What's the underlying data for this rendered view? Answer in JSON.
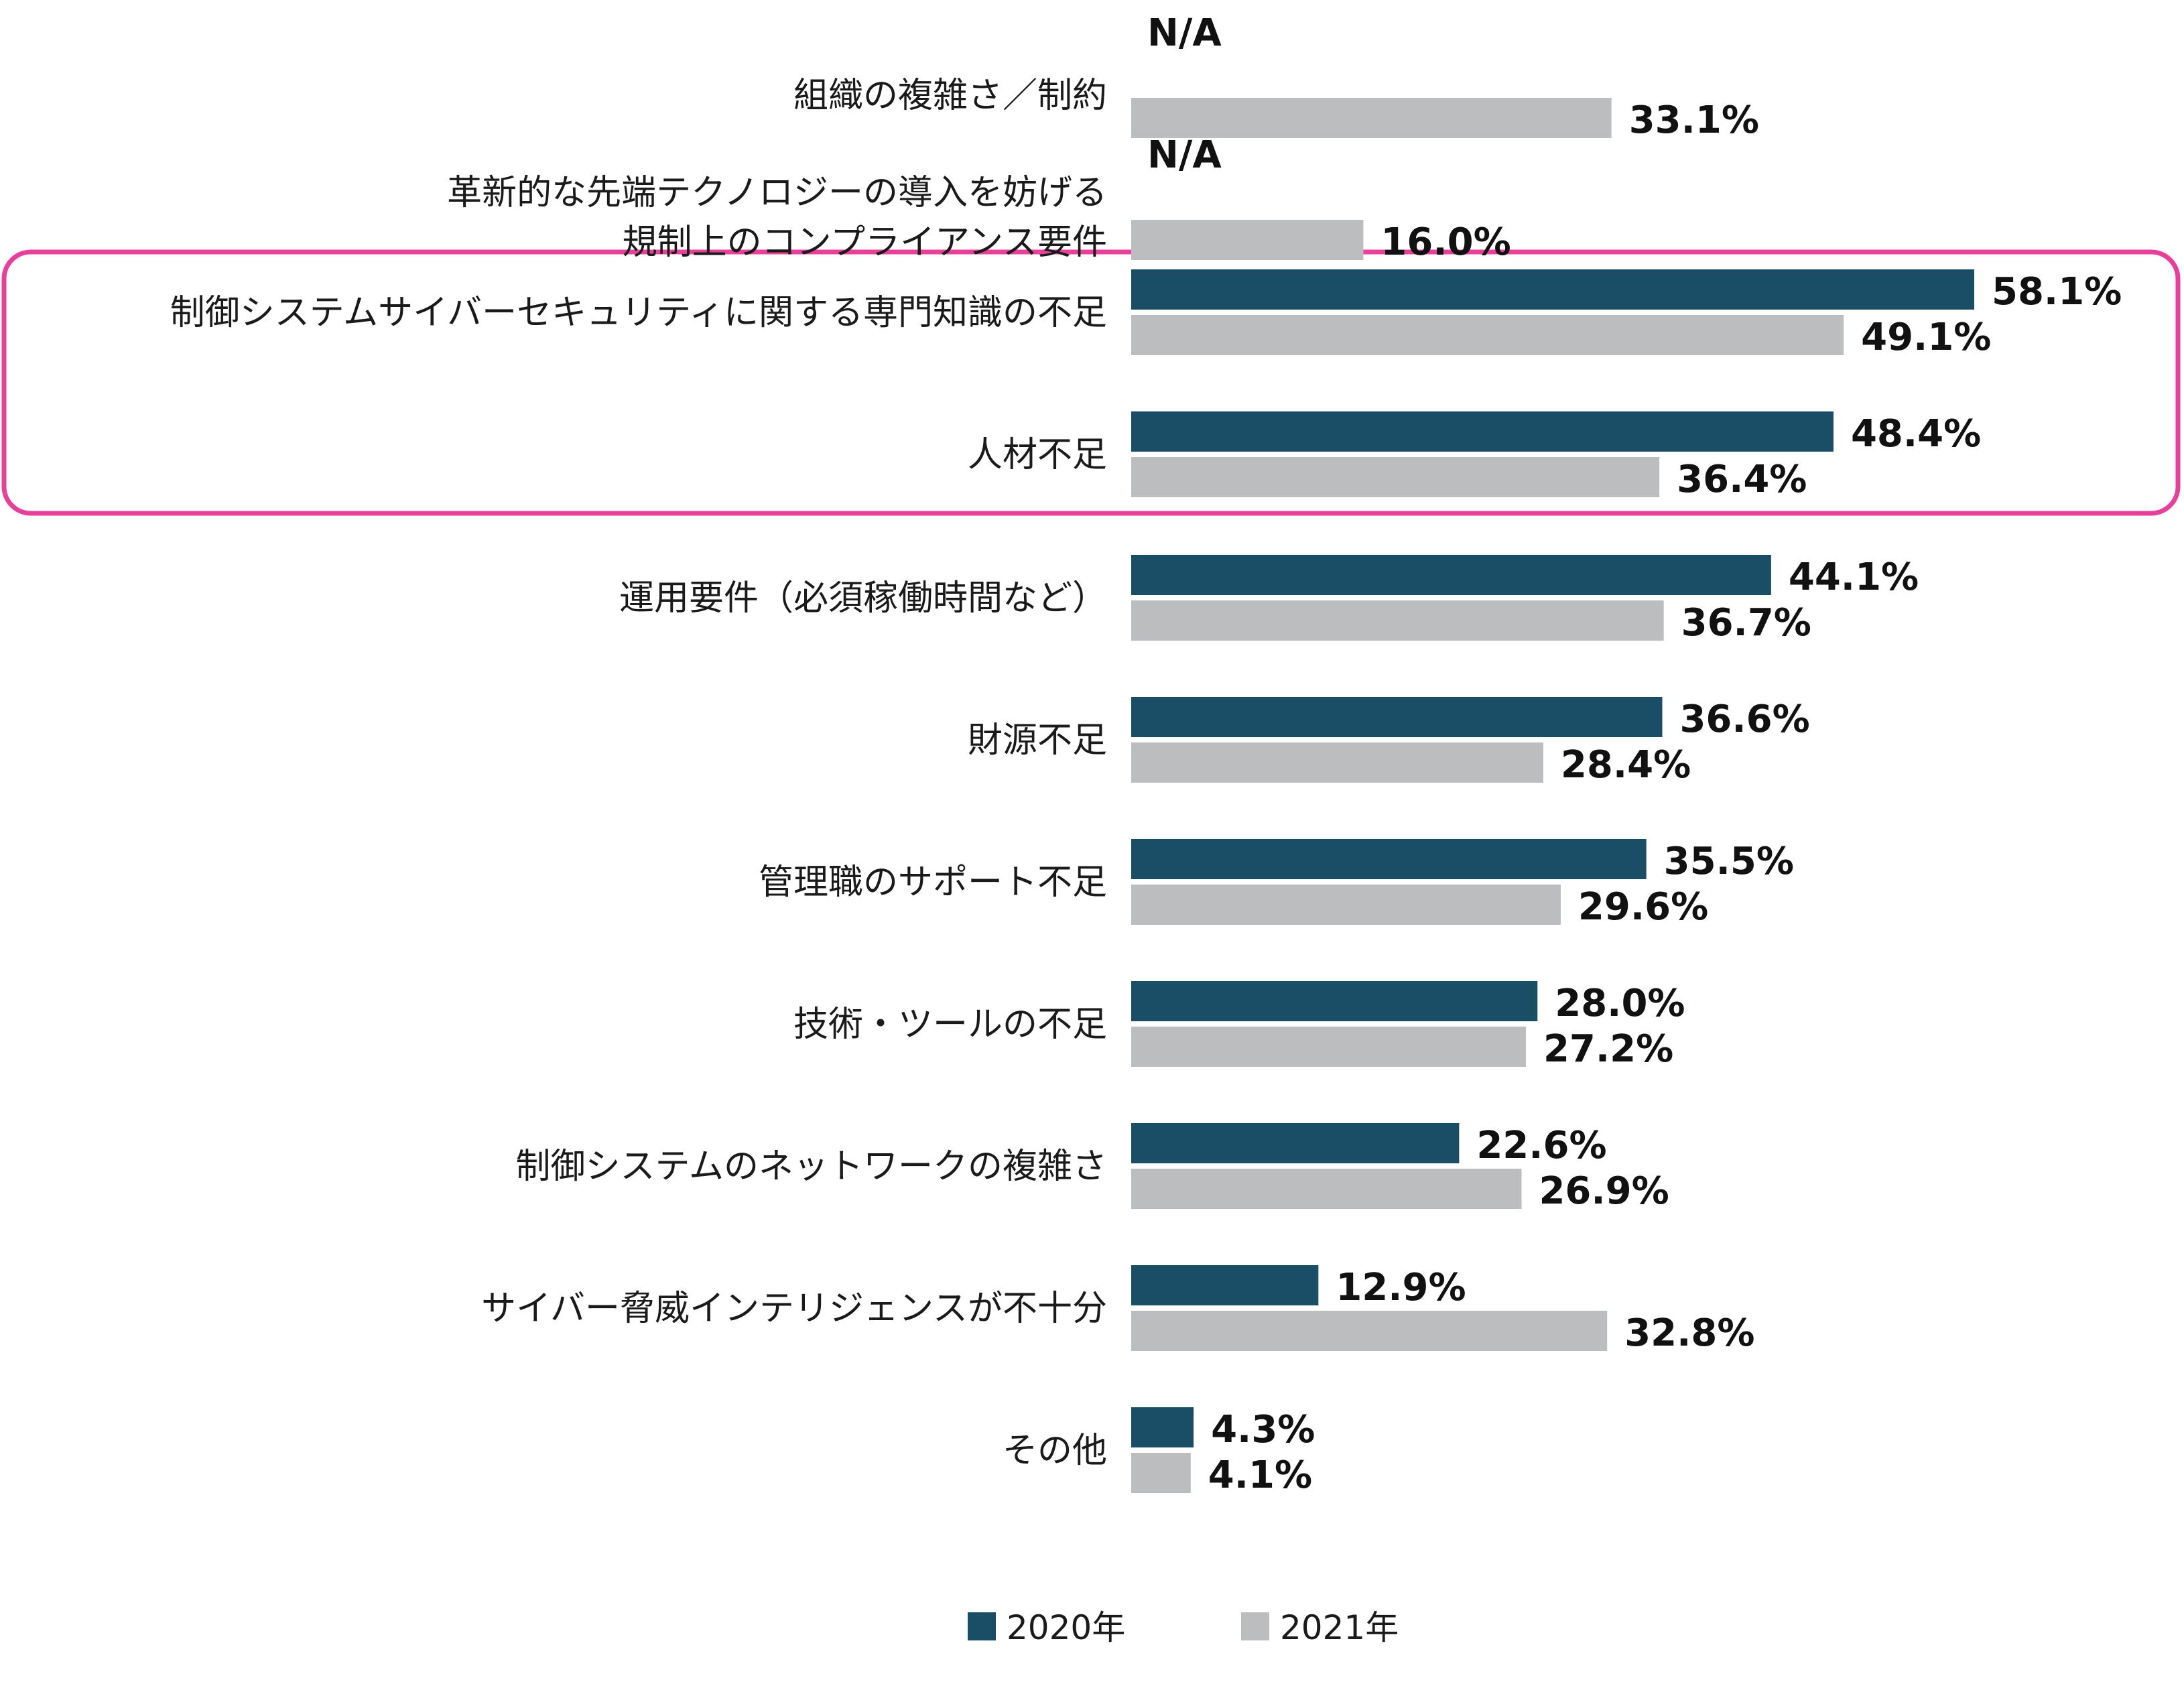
{
  "chart_data": {
    "type": "bar",
    "orientation": "horizontal",
    "categories": [
      [
        "組織の複雑さ／制約"
      ],
      [
        "革新的な先端テクノロジーの導入を妨げる",
        "規制上のコンプライアンス要件"
      ],
      [
        "制御システムサイバーセキュリティに関する専門知識の不足"
      ],
      [
        "人材不足"
      ],
      [
        "運用要件（必須稼働時間など）"
      ],
      [
        "財源不足"
      ],
      [
        "管理職のサポート不足"
      ],
      [
        "技術・ツールの不足"
      ],
      [
        "制御システムのネットワークの複雑さ"
      ],
      [
        "サイバー脅威インテリジェンスが不十分"
      ],
      [
        "その他"
      ]
    ],
    "series": [
      {
        "name": "2020年",
        "color": "#1a4d66",
        "values": [
          null,
          null,
          58.1,
          48.4,
          44.1,
          36.6,
          35.5,
          28.0,
          22.6,
          12.9,
          4.3
        ],
        "labels": [
          "N/A",
          "N/A",
          "58.1%",
          "48.4%",
          "44.1%",
          "36.6%",
          "35.5%",
          "28.0%",
          "22.6%",
          "12.9%",
          "4.3%"
        ]
      },
      {
        "name": "2021年",
        "color": "#bcbdbf",
        "values": [
          33.1,
          16.0,
          49.1,
          36.4,
          36.7,
          28.4,
          29.6,
          27.2,
          26.9,
          32.8,
          4.1
        ],
        "labels": [
          "33.1%",
          "16.0%",
          "49.1%",
          "36.4%",
          "36.7%",
          "28.4%",
          "29.6%",
          "27.2%",
          "26.9%",
          "32.8%",
          "4.1%"
        ]
      }
    ],
    "xlim": [
      0,
      58.1
    ],
    "highlight": {
      "categories": [
        2,
        3
      ],
      "color": "#e8409a"
    },
    "legend": {
      "position": "bottom-center"
    },
    "title": "",
    "xlabel": "",
    "ylabel": ""
  }
}
